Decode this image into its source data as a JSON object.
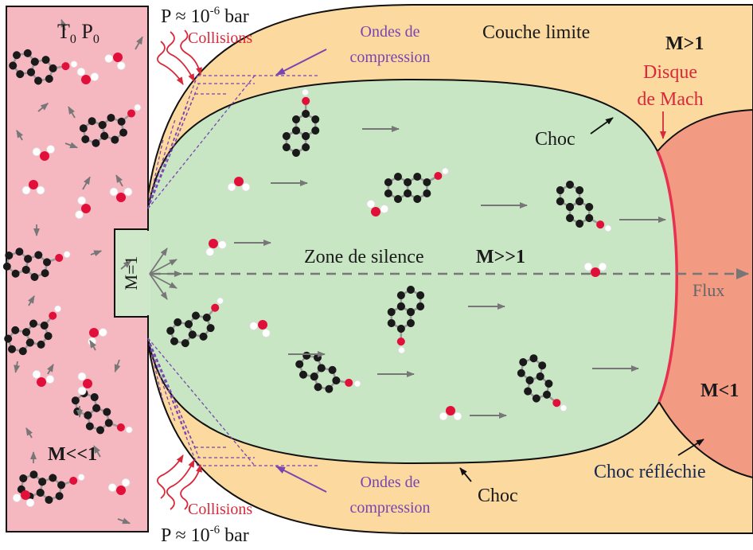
{
  "labels": {
    "t0p0_t": "T",
    "t0p0_sub1": "0",
    "t0p0_p": " P",
    "t0p0_sub2": "0",
    "pressure_top_base": "P ≈ 10",
    "pressure_top_exp": "-6",
    "pressure_top_unit": " bar",
    "pressure_bottom_base": "P ≈ 10",
    "pressure_bottom_exp": "-6",
    "pressure_bottom_unit": " bar",
    "collisions_top": "Collisions",
    "collisions_bottom": "Collisions",
    "ondes_top_1": "Ondes de",
    "ondes_top_2": "compression",
    "ondes_bottom_1": "Ondes de",
    "ondes_bottom_2": "compression",
    "couche_limite": "Couche limite",
    "m_gt_1": "M>1",
    "disque_1": "Disque",
    "disque_2": "de Mach",
    "choc_right": "Choc",
    "choc_bottom": "Choc",
    "zone_silence": "Zone de silence",
    "m_gg_1": "M>>1",
    "flux": "Flux",
    "m_lt_1": "M<1",
    "choc_reflechie": "Choc réfléchie",
    "m_ll_1": "M<<1",
    "nozzle": "M=1"
  },
  "colors": {
    "reservoir": "#f5b7c0",
    "boundary_layer": "#fbd99f",
    "silence_zone": "#c8e6c4",
    "mach_disk_region": "#f29a82",
    "mach_disk_line": "#e8304f",
    "red_text": "#d9283a",
    "purple": "#7a45b0",
    "dark_text": "#1a1a1a",
    "navy_text": "#152850",
    "arrow_gray": "#777777",
    "atom_black": "#1a1a1a",
    "atom_red": "#e0103a",
    "bond_gray": "#9a9a9a"
  },
  "icons": {
    "pah_molecule": "naphthalene-ring-icon",
    "water_molecule": "water-molecule-icon",
    "flow_arrow": "right-arrow-icon",
    "wavy_arrow": "wavy-arrow-icon"
  }
}
